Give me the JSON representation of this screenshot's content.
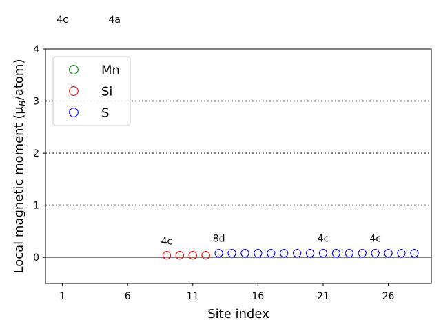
{
  "chart_data": {
    "type": "scatter",
    "xlabel": "Site index",
    "ylabel": "Local magnetic moment (μ",
    "ylabel_sub": "B",
    "ylabel_tail": "/atom)",
    "xlim": [
      -0.3,
      29.3
    ],
    "ylim": [
      -0.5,
      4
    ],
    "xticks": [
      1,
      6,
      11,
      16,
      21,
      26
    ],
    "yticks": [
      0,
      1,
      2,
      3,
      4
    ],
    "hlines_dotted": [
      1,
      2,
      3
    ],
    "hline_solid": 0,
    "legend": {
      "position": "top-left",
      "entries": [
        "Mn",
        "Si",
        "S"
      ]
    },
    "series": [
      {
        "name": "Mn",
        "color": "#008000",
        "marker": "open-circle",
        "x": [],
        "y": []
      },
      {
        "name": "Si",
        "color": "#ff0000",
        "marker": "open-circle",
        "x": [
          9,
          10,
          11,
          12
        ],
        "y": [
          0.04,
          0.04,
          0.04,
          0.04
        ]
      },
      {
        "name": "S",
        "color": "#0000ff",
        "marker": "open-circle",
        "x": [
          13,
          14,
          15,
          16,
          17,
          18,
          19,
          20,
          21,
          22,
          23,
          24,
          25,
          26,
          27,
          28
        ],
        "y": [
          0.08,
          0.08,
          0.08,
          0.08,
          0.08,
          0.08,
          0.08,
          0.08,
          0.08,
          0.08,
          0.08,
          0.08,
          0.08,
          0.08,
          0.08,
          0.08
        ]
      }
    ],
    "annotations": [
      {
        "text": "4c",
        "x": 1,
        "y": 4.5
      },
      {
        "text": "4a",
        "x": 5,
        "y": 4.5
      },
      {
        "text": "4c",
        "x": 9,
        "y": 0.25
      },
      {
        "text": "8d",
        "x": 13,
        "y": 0.3
      },
      {
        "text": "4c",
        "x": 21,
        "y": 0.3
      },
      {
        "text": "4c",
        "x": 25,
        "y": 0.3
      }
    ]
  }
}
